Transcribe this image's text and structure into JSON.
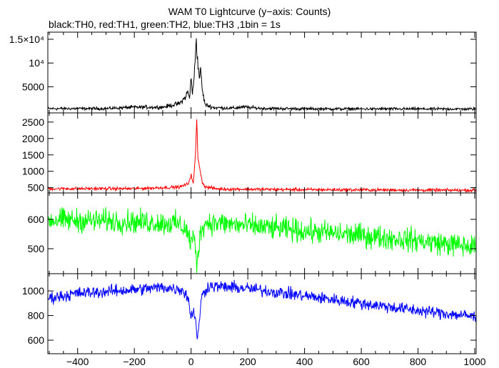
{
  "chart_data": {
    "type": "line",
    "title": "WAM T0 Lightcurve (y−axis: Counts)",
    "subtitle": "black:TH0, red:TH1, green:TH2, blue:TH3 ,1bin = 1s",
    "xlim": [
      -505,
      1005
    ],
    "x_ticks": [
      -400,
      -200,
      0,
      200,
      400,
      600,
      800,
      1000
    ],
    "x_tick_labels": [
      "−400",
      "−200",
      "0",
      "200",
      "400",
      "600",
      "800",
      "1000"
    ],
    "panels": [
      {
        "name": "TH0",
        "color": "#000000",
        "ylim": [
          -500,
          16500
        ],
        "y_ticks": [
          5000,
          10000,
          15000
        ],
        "y_tick_labels": [
          "5000",
          "10⁴",
          "1.5×10⁴"
        ],
        "profile": [
          [
            -505,
            400
          ],
          [
            -300,
            420
          ],
          [
            -200,
            700
          ],
          [
            -100,
            700
          ],
          [
            -40,
            1500
          ],
          [
            -20,
            2800
          ],
          [
            -12,
            4000
          ],
          [
            -5,
            2500
          ],
          [
            0,
            7200
          ],
          [
            5,
            3500
          ],
          [
            10,
            6000
          ],
          [
            18,
            15300
          ],
          [
            24,
            9500
          ],
          [
            30,
            7000
          ],
          [
            34,
            8500
          ],
          [
            40,
            4000
          ],
          [
            50,
            1200
          ],
          [
            80,
            600
          ],
          [
            150,
            500
          ],
          [
            180,
            750
          ],
          [
            250,
            450
          ],
          [
            400,
            350
          ],
          [
            1005,
            320
          ]
        ],
        "noise": 150
      },
      {
        "name": "TH1",
        "color": "#ff0000",
        "ylim": [
          340,
          2780
        ],
        "y_ticks": [
          500,
          1000,
          1500,
          2000,
          2500
        ],
        "y_tick_labels": [
          "500",
          "1000",
          "1500",
          "2000",
          "2500"
        ],
        "profile": [
          [
            -505,
            470
          ],
          [
            -200,
            470
          ],
          [
            -40,
            520
          ],
          [
            -10,
            620
          ],
          [
            0,
            900
          ],
          [
            8,
            600
          ],
          [
            16,
            1600
          ],
          [
            20,
            2600
          ],
          [
            24,
            1400
          ],
          [
            30,
            1150
          ],
          [
            38,
            700
          ],
          [
            50,
            520
          ],
          [
            100,
            460
          ],
          [
            400,
            440
          ],
          [
            1005,
            420
          ]
        ],
        "noise": 35
      },
      {
        "name": "TH2",
        "color": "#00ff00",
        "ylim": [
          415,
          690
        ],
        "y_ticks": [
          500,
          600
        ],
        "y_tick_labels": [
          "500",
          "600"
        ],
        "profile": [
          [
            -505,
            598
          ],
          [
            -300,
            595
          ],
          [
            -150,
            590
          ],
          [
            -50,
            585
          ],
          [
            -20,
            570
          ],
          [
            0,
            520
          ],
          [
            10,
            545
          ],
          [
            20,
            440
          ],
          [
            28,
            520
          ],
          [
            40,
            580
          ],
          [
            60,
            590
          ],
          [
            200,
            578
          ],
          [
            400,
            560
          ],
          [
            600,
            545
          ],
          [
            800,
            528
          ],
          [
            1005,
            505
          ]
        ],
        "noise": 28
      },
      {
        "name": "TH3",
        "color": "#0000ff",
        "ylim": [
          490,
          1140
        ],
        "y_ticks": [
          600,
          800,
          1000
        ],
        "y_tick_labels": [
          "600",
          "800",
          "1000"
        ],
        "profile": [
          [
            -505,
            940
          ],
          [
            -400,
            980
          ],
          [
            -200,
            1010
          ],
          [
            -100,
            1030
          ],
          [
            -30,
            1010
          ],
          [
            -10,
            940
          ],
          [
            0,
            780
          ],
          [
            8,
            850
          ],
          [
            16,
            780
          ],
          [
            22,
            580
          ],
          [
            28,
            720
          ],
          [
            35,
            940
          ],
          [
            60,
            1040
          ],
          [
            200,
            1020
          ],
          [
            400,
            960
          ],
          [
            600,
            900
          ],
          [
            800,
            840
          ],
          [
            1005,
            790
          ]
        ],
        "noise": 35
      }
    ]
  }
}
